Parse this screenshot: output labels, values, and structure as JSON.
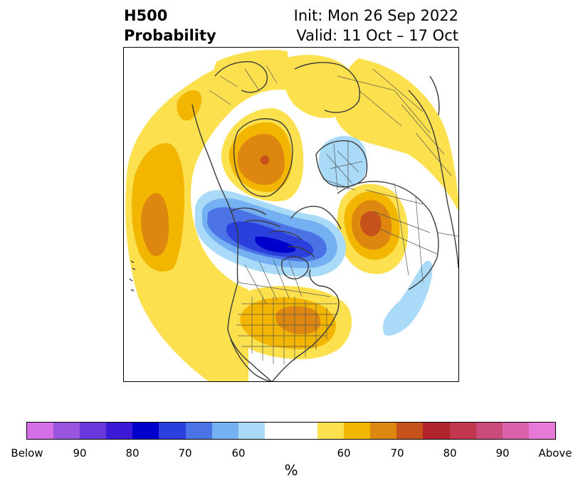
{
  "title": {
    "left_line1": "H500",
    "left_line2": "Probability",
    "right_line1": "Init: Mon 26 Sep 2022",
    "right_line2": "Valid: 11 Oct – 17 Oct"
  },
  "colorbar": {
    "label": "%",
    "tick_labels": [
      "Below",
      "90",
      "80",
      "70",
      "60",
      "60",
      "70",
      "80",
      "90",
      "Above"
    ],
    "colors": [
      "#d56fe8",
      "#9a55e0",
      "#6a37da",
      "#3b19d6",
      "#0000cc",
      "#2a3fdc",
      "#4b73e6",
      "#74b0f2",
      "#a9daf8",
      "#ffffff",
      "#ffffff",
      "#fde04e",
      "#f3b600",
      "#de8710",
      "#c5521a",
      "#b0232a",
      "#c1384e",
      "#cb4c7c",
      "#d962ab",
      "#e77ad9"
    ]
  },
  "map": {
    "colors": {
      "yellow": "#fde04e",
      "gold": "#f3b600",
      "orange": "#de8710",
      "rust": "#c5521a",
      "lightblue": "#a9daf8",
      "skyblue": "#74b0f2",
      "midblue": "#4b73e6",
      "royalblue": "#2a3fdc",
      "deepblue": "#0000cc",
      "coast": "#3a3a3a",
      "border": "#555555"
    }
  }
}
